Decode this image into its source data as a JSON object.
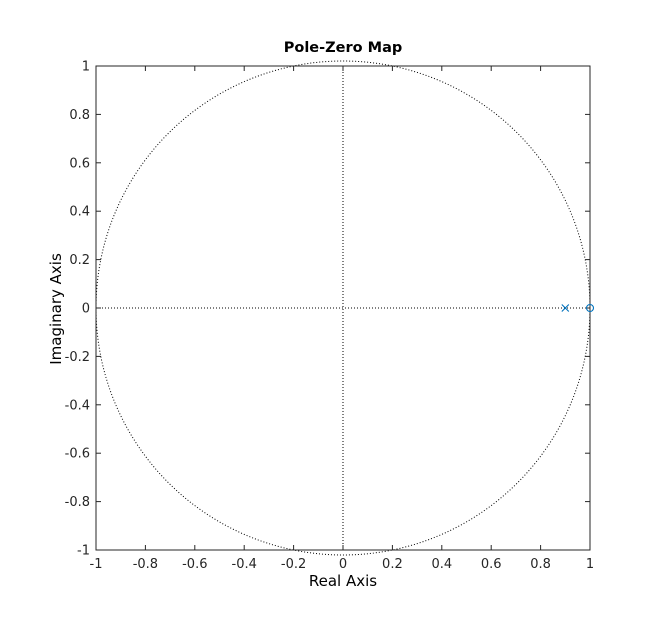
{
  "chart_data": {
    "type": "scatter",
    "title": "Pole-Zero Map",
    "xlabel": "Real Axis",
    "ylabel": "Imaginary Axis",
    "xlim": [
      -1,
      1
    ],
    "ylim": [
      -1,
      1
    ],
    "xticks": [
      -1,
      -0.8,
      -0.6,
      -0.4,
      -0.2,
      0,
      0.2,
      0.4,
      0.6,
      0.8,
      1
    ],
    "xtick_labels": [
      "-1",
      "-0.8",
      "-0.6",
      "-0.4",
      "-0.2",
      "0",
      "0.2",
      "0.4",
      "0.6",
      "0.8",
      "1"
    ],
    "yticks": [
      1,
      0.8,
      0.6,
      0.4,
      0.2,
      0,
      -0.2,
      -0.4,
      -0.6,
      -0.8,
      -1
    ],
    "ytick_labels": [
      "1",
      "0.8",
      "0.6",
      "0.4",
      "0.2",
      "0",
      "-0.2",
      "-0.4",
      "-0.6",
      "-0.8",
      "-1"
    ],
    "grid": false,
    "unit_circle": true,
    "poles": [
      {
        "x": 0.9,
        "y": 0
      }
    ],
    "zeros": [
      {
        "x": 1,
        "y": 0
      }
    ],
    "colors": {
      "marker": "#0072BD",
      "axes": "#262626",
      "reference": "#000000"
    }
  }
}
